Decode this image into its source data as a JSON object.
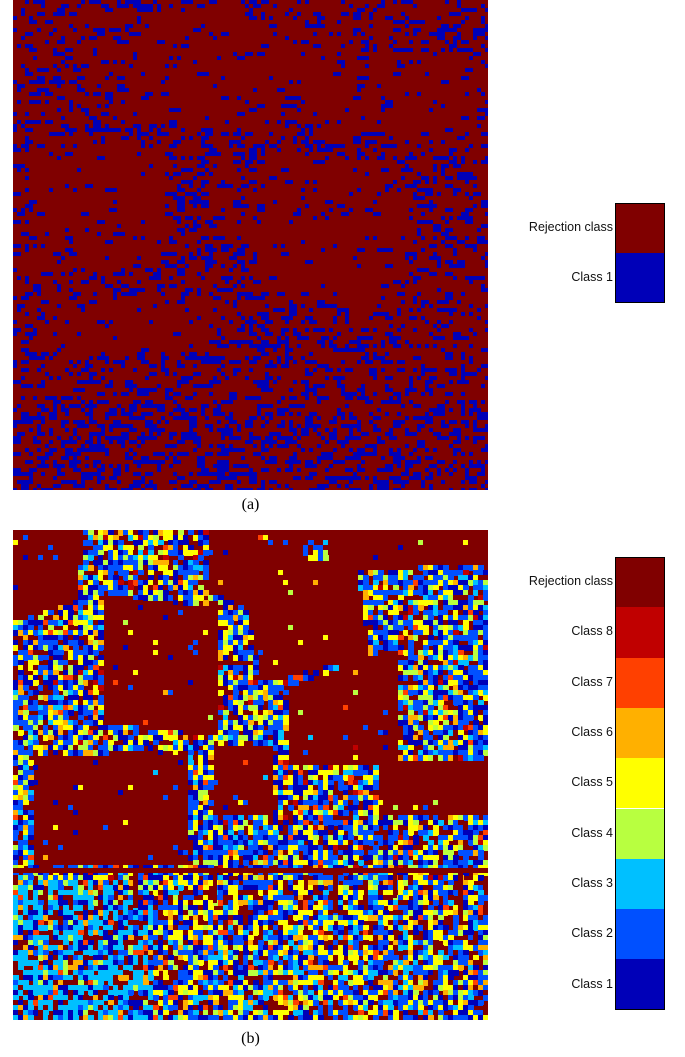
{
  "panels": [
    {
      "caption": "(a)",
      "legend": [
        {
          "label": "Rejection class",
          "color": "#800000"
        },
        {
          "label": "Class 1",
          "color": "#0000b8"
        }
      ]
    },
    {
      "caption": "(b)",
      "legend": [
        {
          "label": "Rejection class",
          "color": "#800000"
        },
        {
          "label": "Class 8",
          "color": "#c00000"
        },
        {
          "label": "Class 7",
          "color": "#ff4000"
        },
        {
          "label": "Class 6",
          "color": "#ffb000"
        },
        {
          "label": "Class 5",
          "color": "#ffff00"
        },
        {
          "label": "Class 4",
          "color": "#b8ff40"
        },
        {
          "label": "Class 3",
          "color": "#00c0ff"
        },
        {
          "label": "Class 2",
          "color": "#0050ff"
        },
        {
          "label": "Class 1",
          "color": "#0000b8"
        }
      ]
    }
  ]
}
